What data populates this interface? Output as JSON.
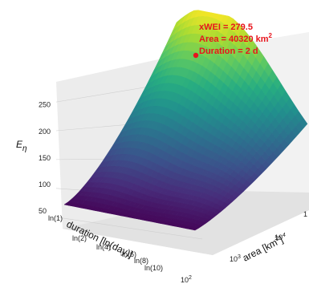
{
  "chart_data": {
    "type": "surface",
    "title": "",
    "zlabel_main": "E",
    "zlabel_sub": "η",
    "xlabel": "duration [ln(day)]",
    "ylabel_main": "area [km",
    "ylabel_sup": "2",
    "ylabel_end": "]",
    "z_ticks": [
      "50",
      "100",
      "150",
      "200",
      "250"
    ],
    "zlim": [
      30,
      285
    ],
    "duration_ticks": [
      "ln(1)",
      "ln(2)",
      "ln(4)",
      "ln(6)",
      "ln(8)",
      "ln(10)"
    ],
    "area_ticks": [
      {
        "base": "10",
        "exp": "2"
      },
      {
        "base": "10",
        "exp": "3"
      },
      {
        "base": "10",
        "exp": "4"
      },
      {
        "base": "1",
        "exp": ""
      }
    ],
    "colormap": "viridis",
    "peak": {
      "xwei_label": "xWEI = 279.5",
      "area_label": "Area = 40320 km",
      "area_sup": "2",
      "duration_label": "Duration = 2 d",
      "xwei": 279.5,
      "area_km2": 40320,
      "duration_d": 2,
      "marker_color": "#e8141c"
    },
    "grid": true
  }
}
